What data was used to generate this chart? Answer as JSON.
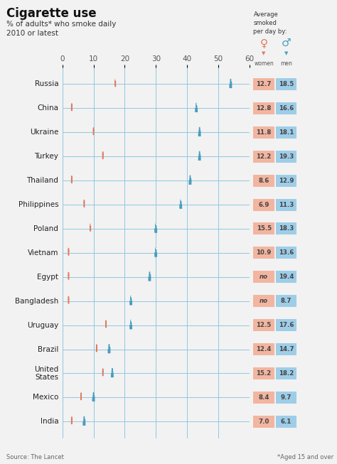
{
  "title": "Cigarette use",
  "subtitle1": "% of adults* who smoke daily",
  "subtitle2": "2010 or latest",
  "source": "Source: The Lancet",
  "footnote": "*Aged 15 and over",
  "countries": [
    "Russia",
    "China",
    "Ukraine",
    "Turkey",
    "Thailand",
    "Philippines",
    "Poland",
    "Vietnam",
    "Egypt",
    "Bangladesh",
    "Uruguay",
    "Brazil",
    "United\nStates",
    "Mexico",
    "India"
  ],
  "women_pct": [
    17,
    3,
    10,
    13,
    3,
    7,
    9,
    2,
    2,
    2,
    14,
    11,
    13,
    6,
    3
  ],
  "men_pct": [
    54,
    43,
    44,
    44,
    41,
    38,
    30,
    30,
    28,
    22,
    22,
    15,
    16,
    10,
    7
  ],
  "women_avg": [
    "12.7",
    "12.8",
    "11.8",
    "12.2",
    "8.6",
    "6.9",
    "15.5",
    "10.9",
    "no",
    "no",
    "12.5",
    "12.4",
    "15.2",
    "8.4",
    "7.0"
  ],
  "men_avg": [
    "18.5",
    "16.6",
    "18.1",
    "19.3",
    "12.9",
    "11.3",
    "18.3",
    "13.6",
    "19.4",
    "8.7",
    "17.6",
    "14.7",
    "18.2",
    "9.7",
    "6.1"
  ],
  "women_color": "#e07a5f",
  "men_color": "#4a9dbf",
  "women_bg": "#f2b5a0",
  "men_bg": "#9ecde8",
  "grid_color": "#90c8e0",
  "bg_color": "#f2f2f2",
  "line_color": "#b0d8ec",
  "xlim": [
    0,
    60
  ],
  "xticks": [
    0,
    10,
    20,
    30,
    40,
    50,
    60
  ]
}
